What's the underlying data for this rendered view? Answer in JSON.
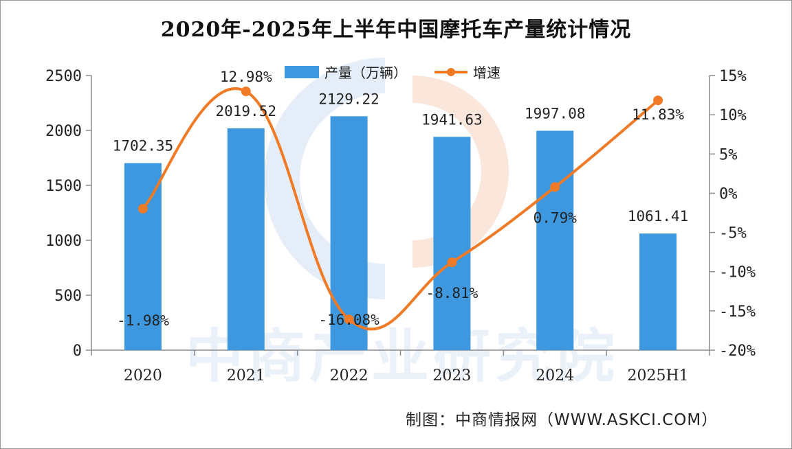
{
  "colors": {
    "bar": "#3d98e0",
    "line": "#f07a26",
    "axis": "#8c8c8c"
  },
  "watermark": {
    "text": "中商产业研究院"
  },
  "source_text": "制图：中商情报网（WWW.ASKCI.COM）",
  "chart_data": {
    "type": "bar",
    "title": "2020年-2025年上半年中国摩托车产量统计情况",
    "categories": [
      "2020",
      "2021",
      "2022",
      "2023",
      "2024",
      "2025H1"
    ],
    "series": [
      {
        "name": "产量（万辆）",
        "type": "bar",
        "axis": "left",
        "values": [
          1702.35,
          2019.52,
          2129.22,
          1941.63,
          1997.08,
          1061.41
        ],
        "labels": [
          "1702.35",
          "2019.52",
          "2129.22",
          "1941.63",
          "1997.08",
          "1061.41"
        ]
      },
      {
        "name": "增速",
        "type": "line",
        "axis": "right",
        "unit": "%",
        "values": [
          -1.98,
          12.98,
          -16.08,
          -8.81,
          0.79,
          11.83
        ],
        "labels": [
          "-1.98%",
          "12.98%",
          "-16.08%",
          "-8.81%",
          "0.79%",
          "11.83%"
        ]
      }
    ],
    "y_left": {
      "min": 0,
      "max": 2500,
      "ticks": [
        "0",
        "500",
        "1000",
        "1500",
        "2000",
        "2500"
      ]
    },
    "y_right": {
      "min": -20,
      "max": 15,
      "ticks": [
        "-20%",
        "-15%",
        "-10%",
        "-5%",
        "0%",
        "5%",
        "10%",
        "15%"
      ]
    },
    "legend_position": "top-center",
    "grid": false
  }
}
